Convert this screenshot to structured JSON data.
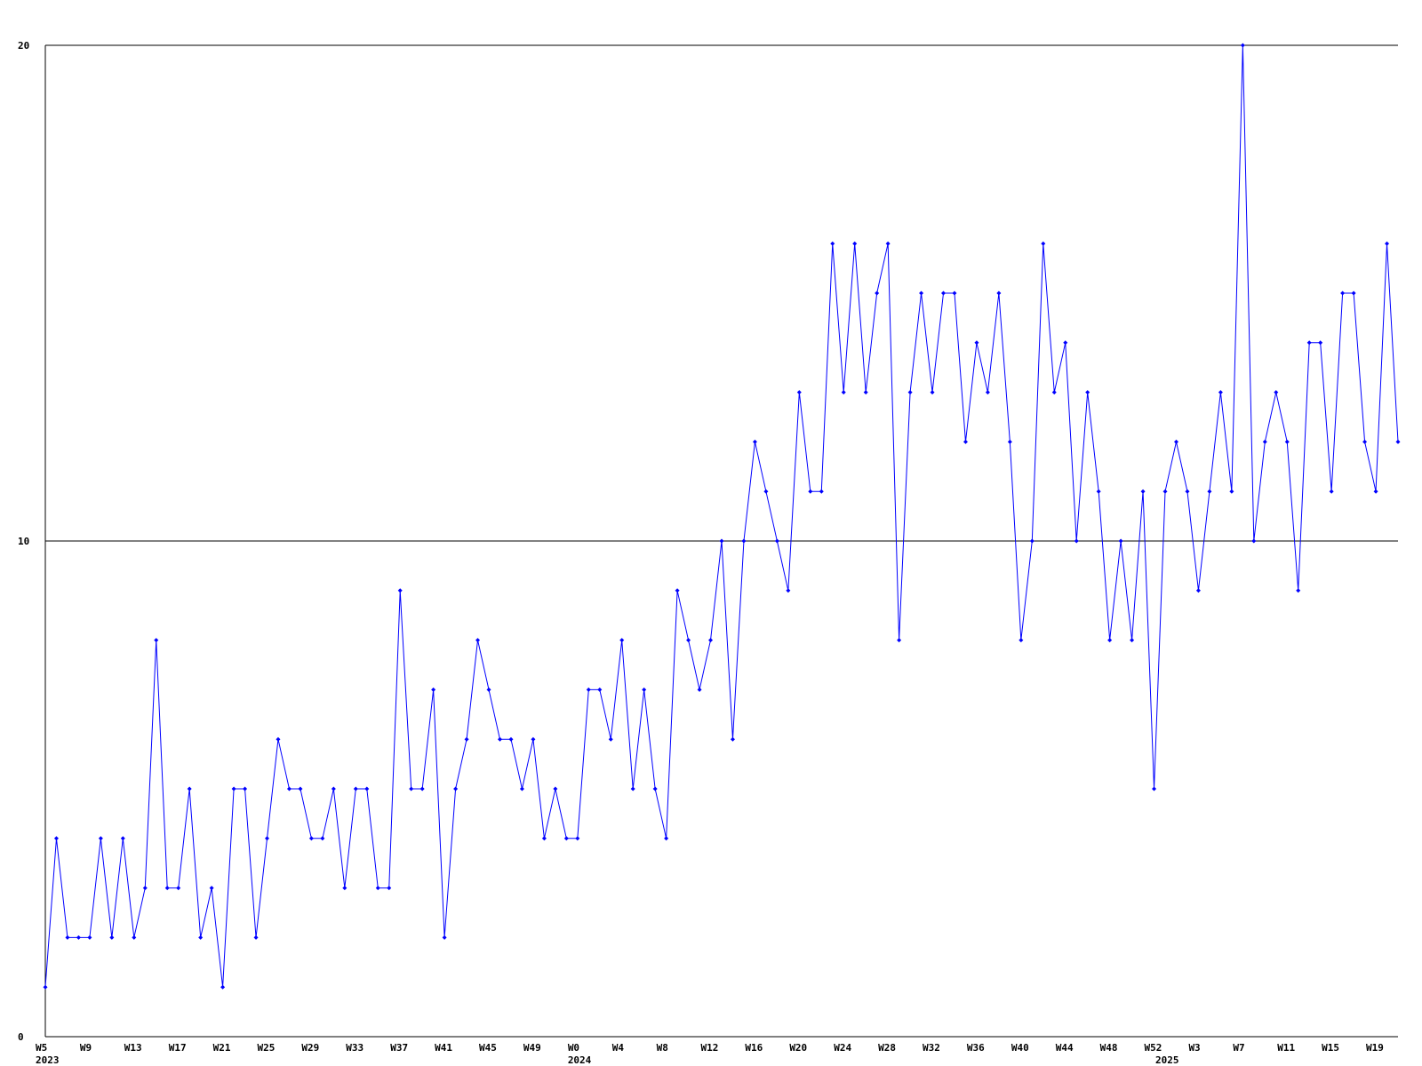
{
  "chart_data": {
    "type": "line",
    "categories": [
      "W5",
      null,
      null,
      null,
      "W9",
      null,
      null,
      null,
      "W13",
      null,
      null,
      null,
      "W17",
      null,
      null,
      null,
      "W21",
      null,
      null,
      null,
      "W25",
      null,
      null,
      null,
      "W29",
      null,
      null,
      null,
      "W33",
      null,
      null,
      null,
      "W37",
      null,
      null,
      null,
      "W41",
      null,
      null,
      null,
      "W45",
      null,
      null,
      null,
      "W49",
      null,
      null,
      null,
      "W0",
      null,
      null,
      null,
      "W4",
      null,
      null,
      null,
      "W8",
      null,
      null,
      null,
      "W12",
      null,
      null,
      null,
      "W16",
      null,
      null,
      null,
      "W20",
      null,
      null,
      null,
      "W24",
      null,
      null,
      null,
      "W28",
      null,
      null,
      null,
      "W32",
      null,
      null,
      null,
      "W36",
      null,
      null,
      null,
      "W40",
      null,
      null,
      null,
      "W44",
      null,
      null,
      null,
      "W48",
      null,
      null,
      null,
      "W52",
      null,
      null,
      null,
      "W3",
      null,
      null,
      null,
      "W7",
      null,
      null,
      null,
      "W11",
      null,
      null,
      null,
      "W15",
      null,
      null,
      null,
      "W19",
      null,
      null
    ],
    "years": [
      "2023",
      null,
      null,
      null,
      null,
      null,
      null,
      null,
      null,
      null,
      null,
      null,
      null,
      null,
      null,
      null,
      null,
      null,
      null,
      null,
      null,
      null,
      null,
      null,
      null,
      null,
      null,
      null,
      null,
      null,
      null,
      null,
      null,
      null,
      null,
      null,
      null,
      null,
      null,
      null,
      null,
      null,
      null,
      null,
      null,
      null,
      null,
      null,
      "2024",
      null,
      null,
      null,
      null,
      null,
      null,
      null,
      null,
      null,
      null,
      null,
      null,
      null,
      null,
      null,
      null,
      null,
      null,
      null,
      null,
      null,
      null,
      null,
      null,
      null,
      null,
      null,
      null,
      null,
      null,
      null,
      null,
      null,
      null,
      null,
      null,
      null,
      null,
      null,
      null,
      null,
      null,
      null,
      null,
      null,
      null,
      null,
      null,
      null,
      null,
      null,
      null,
      "2025",
      null,
      null,
      null,
      null,
      null,
      null,
      null,
      null,
      null,
      null,
      null,
      null,
      null,
      null,
      null,
      null,
      null,
      null,
      null,
      null,
      null
    ],
    "series": [
      {
        "color": "#0000ff",
        "values": [
          1,
          4,
          2,
          2,
          2,
          4,
          2,
          4,
          2,
          3,
          8,
          3,
          3,
          5,
          2,
          3,
          1,
          5,
          5,
          2,
          4,
          6,
          5,
          5,
          4,
          4,
          5,
          3,
          5,
          5,
          3,
          3,
          9,
          5,
          5,
          7,
          2,
          5,
          6,
          8,
          7,
          6,
          6,
          5,
          6,
          4,
          5,
          4,
          4,
          7,
          7,
          6,
          8,
          5,
          7,
          5,
          4,
          9,
          8,
          7,
          8,
          10,
          6,
          10,
          12,
          11,
          10,
          9,
          13,
          11,
          11,
          16,
          13,
          16,
          13,
          15,
          16,
          8,
          13,
          15,
          13,
          15,
          15,
          12,
          14,
          13,
          15,
          12,
          8,
          10,
          16,
          13,
          14,
          10,
          13,
          11,
          8,
          10,
          8,
          11,
          5,
          11,
          12,
          11,
          9,
          11,
          13,
          11,
          20,
          10,
          12,
          13,
          12,
          9,
          14,
          14,
          11,
          15,
          15,
          12,
          11,
          16,
          12
        ]
      }
    ],
    "ylim": [
      0,
      20
    ],
    "yticks": [
      0,
      10,
      20
    ],
    "grid": true
  }
}
